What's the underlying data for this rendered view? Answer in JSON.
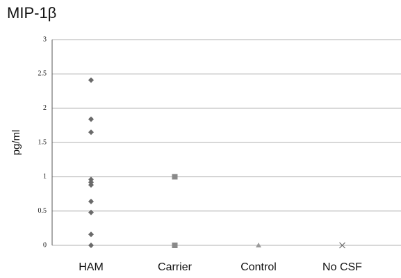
{
  "chart_data": {
    "type": "strip",
    "title": "MIP-1β",
    "y_label": "pg/ml",
    "categories": [
      "HAM",
      "Carrier",
      "Control",
      "No CSF"
    ],
    "groups": [
      {
        "values": [
          2.41,
          1.84,
          1.65,
          0.96,
          0.92,
          0.88,
          0.64,
          0.48,
          0.16,
          0
        ],
        "marker": "diamond",
        "color": "#6a6a6a"
      },
      {
        "values": [
          1,
          0
        ],
        "marker": "square",
        "color": "#8a8a8a"
      },
      {
        "values": [
          0
        ],
        "marker": "triangle",
        "color": "#9a9a9a"
      },
      {
        "values": [
          0
        ],
        "marker": "x",
        "color": "#6a6a6a"
      }
    ],
    "ylim": [
      0,
      3
    ],
    "yticks": [
      0,
      0.5,
      1,
      1.5,
      2,
      2.5,
      3
    ],
    "grid": true
  }
}
